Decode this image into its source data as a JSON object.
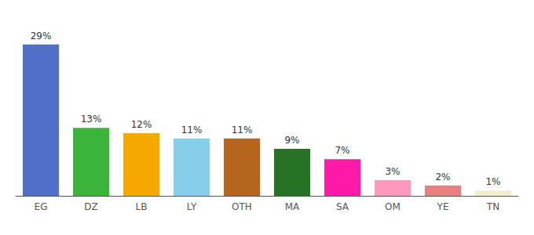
{
  "chart_data": {
    "type": "bar",
    "categories": [
      "EG",
      "DZ",
      "LB",
      "LY",
      "OTH",
      "MA",
      "SA",
      "OM",
      "YE",
      "TN"
    ],
    "values": [
      29,
      13,
      12,
      11,
      11,
      9,
      7,
      3,
      2,
      1
    ],
    "value_labels": [
      "29%",
      "13%",
      "12%",
      "11%",
      "11%",
      "9%",
      "7%",
      "3%",
      "2%",
      "1%"
    ],
    "colors": [
      "#4f6fc8",
      "#3ab53a",
      "#f5a800",
      "#87ceeb",
      "#b5651d",
      "#267326",
      "#ff1aaa",
      "#ff99bb",
      "#e88080",
      "#f0eecc"
    ],
    "ylim": [
      0,
      33
    ],
    "data_labels": true,
    "tick_labels": "x",
    "grid": false
  }
}
